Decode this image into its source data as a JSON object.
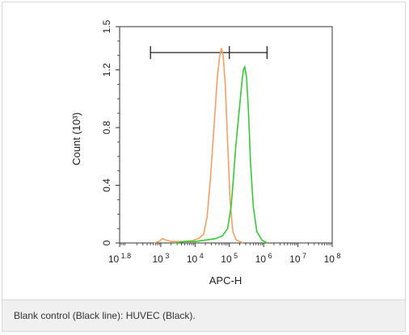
{
  "chart_data": {
    "type": "line",
    "xlabel": "APC-H",
    "ylabel": "Count (10³)",
    "x_scale": "log",
    "xlim_exp": [
      1.8,
      8
    ],
    "ylim": [
      0,
      1.5
    ],
    "x_ticks": [
      {
        "base": "10",
        "exp": "1.8",
        "value_exp": 1.8
      },
      {
        "base": "10",
        "exp": "3",
        "value_exp": 3
      },
      {
        "base": "10",
        "exp": "4",
        "value_exp": 4
      },
      {
        "base": "10",
        "exp": "5",
        "value_exp": 5
      },
      {
        "base": "10",
        "exp": "6",
        "value_exp": 6
      },
      {
        "base": "10",
        "exp": "7",
        "value_exp": 7
      },
      {
        "base": "10",
        "exp": "8",
        "value_exp": 8
      }
    ],
    "y_ticks": [
      {
        "label": "0",
        "value": 0
      },
      {
        "label": "0.4",
        "value": 0.4
      },
      {
        "label": "0.8",
        "value": 0.8
      },
      {
        "label": "1.2",
        "value": 1.2
      },
      {
        "label": "1.5",
        "value": 1.5
      }
    ],
    "gate": {
      "x_start_exp": 2.7,
      "x_mid_exp": 5.0,
      "x_end_exp": 6.1,
      "y": 1.32
    },
    "series": [
      {
        "color": "#f5a060",
        "points": [
          [
            2.8,
            0.0
          ],
          [
            2.95,
            0.01
          ],
          [
            3.05,
            0.03
          ],
          [
            3.15,
            0.02
          ],
          [
            3.3,
            0.01
          ],
          [
            3.6,
            0.01
          ],
          [
            3.9,
            0.015
          ],
          [
            4.1,
            0.03
          ],
          [
            4.25,
            0.06
          ],
          [
            4.35,
            0.18
          ],
          [
            4.45,
            0.45
          ],
          [
            4.55,
            0.8
          ],
          [
            4.65,
            1.15
          ],
          [
            4.72,
            1.3
          ],
          [
            4.77,
            1.35
          ],
          [
            4.82,
            1.3
          ],
          [
            4.88,
            1.1
          ],
          [
            4.95,
            0.7
          ],
          [
            5.02,
            0.3
          ],
          [
            5.1,
            0.08
          ],
          [
            5.2,
            0.02
          ],
          [
            5.4,
            0.0
          ]
        ]
      },
      {
        "color": "#33cc33",
        "points": [
          [
            3.4,
            0.0
          ],
          [
            3.7,
            0.01
          ],
          [
            4.0,
            0.01
          ],
          [
            4.3,
            0.02
          ],
          [
            4.6,
            0.03
          ],
          [
            4.8,
            0.05
          ],
          [
            4.95,
            0.1
          ],
          [
            5.05,
            0.25
          ],
          [
            5.12,
            0.45
          ],
          [
            5.18,
            0.65
          ],
          [
            5.24,
            0.8
          ],
          [
            5.3,
            0.95
          ],
          [
            5.36,
            1.1
          ],
          [
            5.41,
            1.2
          ],
          [
            5.45,
            1.22
          ],
          [
            5.5,
            1.15
          ],
          [
            5.56,
            0.9
          ],
          [
            5.62,
            0.55
          ],
          [
            5.7,
            0.25
          ],
          [
            5.8,
            0.08
          ],
          [
            5.95,
            0.02
          ],
          [
            6.1,
            0.0
          ]
        ]
      }
    ]
  },
  "caption": "Blank control (Black line): HUVEC (Black)."
}
